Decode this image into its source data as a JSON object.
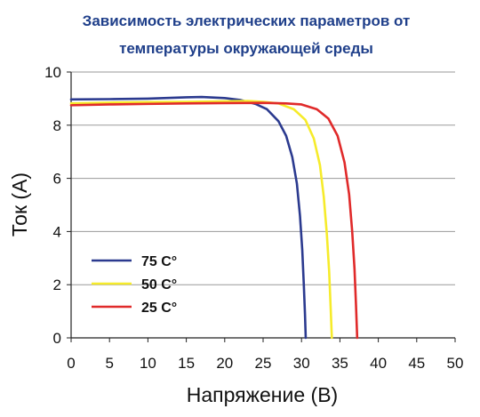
{
  "chart_data": {
    "type": "line",
    "title_lines": [
      "Зависимость электрических параметров от",
      "температуры окружающей среды"
    ],
    "xlabel": "Напряжение (В)",
    "ylabel": "Ток (А)",
    "xlim": [
      0,
      50
    ],
    "ylim": [
      0,
      10
    ],
    "x_ticks": [
      "0",
      "5",
      "10",
      "15",
      "20",
      "25",
      "30",
      "35",
      "40",
      "45",
      "50"
    ],
    "y_ticks": [
      {
        "value": 0,
        "label": "0"
      },
      {
        "value": 2,
        "label": "2"
      },
      {
        "value": 4,
        "label": "4"
      },
      {
        "value": 6,
        "label": "6"
      },
      {
        "value": 8,
        "label": "8"
      },
      {
        "value": 10,
        "label": "10"
      }
    ],
    "grid": "horizontal",
    "legend_position": "lower-left",
    "series": [
      {
        "name": "75 С°",
        "color": "#2b3a8f",
        "x": [
          0,
          5,
          10,
          15,
          17,
          20,
          22,
          24,
          25.5,
          27,
          28,
          28.8,
          29.4,
          29.8,
          30.1,
          30.3,
          30.45,
          30.55
        ],
        "y": [
          8.97,
          8.98,
          9.0,
          9.05,
          9.06,
          9.02,
          8.95,
          8.8,
          8.6,
          8.15,
          7.6,
          6.8,
          5.8,
          4.6,
          3.3,
          2.0,
          0.9,
          0
        ]
      },
      {
        "name": "50 С°",
        "color": "#f6eb2a",
        "x": [
          0,
          5,
          10,
          15,
          20,
          23,
          25,
          27,
          29,
          30.5,
          31.6,
          32.4,
          32.9,
          33.3,
          33.6,
          33.8,
          33.95
        ],
        "y": [
          8.82,
          8.85,
          8.87,
          8.88,
          8.9,
          8.91,
          8.88,
          8.82,
          8.6,
          8.2,
          7.5,
          6.5,
          5.3,
          3.9,
          2.5,
          1.1,
          0
        ]
      },
      {
        "name": "25 С°",
        "color": "#e02a2a",
        "x": [
          0,
          5,
          10,
          15,
          20,
          25,
          28,
          30,
          32,
          33.5,
          34.7,
          35.6,
          36.2,
          36.6,
          36.9,
          37.1,
          37.25
        ],
        "y": [
          8.75,
          8.78,
          8.8,
          8.82,
          8.83,
          8.84,
          8.82,
          8.78,
          8.6,
          8.25,
          7.6,
          6.6,
          5.4,
          4.0,
          2.6,
          1.2,
          0
        ]
      }
    ]
  }
}
